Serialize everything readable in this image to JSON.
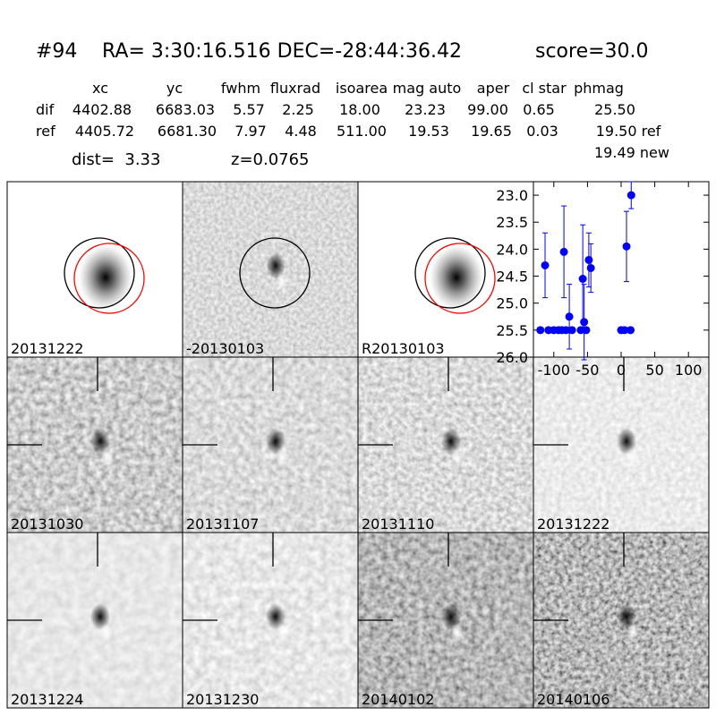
{
  "header": {
    "id": "#94",
    "coords": "RA= 3:30:16.516 DEC=-28:44:36.42",
    "score": "score=30.0"
  },
  "table": {
    "columns": [
      "xc",
      "yc",
      "fwhm",
      "fluxrad",
      "isoarea",
      "mag auto",
      "aper",
      "cl star",
      "phmag"
    ],
    "rows": [
      {
        "label": "dif",
        "values": [
          "4402.88",
          "6683.03",
          "5.57",
          "2.25",
          "18.00",
          "23.23",
          "99.00",
          "0.65",
          "25.50"
        ]
      },
      {
        "label": "ref",
        "values": [
          "4405.72",
          "6681.30",
          "7.97",
          "4.48",
          "511.00",
          "19.53",
          "19.65",
          "0.03",
          "19.50 ref"
        ]
      }
    ],
    "extra": "19.49 new"
  },
  "distance": "dist=  3.33",
  "redshift": "z=0.0765",
  "stamps": [
    {
      "label": "20131222"
    },
    {
      "label": "-20130103"
    },
    {
      "label": "R20130103"
    },
    {
      "label": "20131030"
    },
    {
      "label": "20131107"
    },
    {
      "label": "20131110"
    },
    {
      "label": "20131222",
      "color": "#ff0000"
    },
    {
      "label": "20131224"
    },
    {
      "label": "20131230"
    },
    {
      "label": "20140102"
    },
    {
      "label": "20140106"
    }
  ],
  "chart_data": {
    "type": "scatter",
    "color": "#0000ff",
    "x": [
      -120,
      -113,
      -108,
      -100,
      -93,
      -88,
      -85,
      -82,
      -77,
      -73,
      -60,
      -57,
      -55,
      -52,
      -48,
      -45,
      0,
      5,
      8,
      14,
      15
    ],
    "values": [
      25.5,
      24.3,
      25.5,
      25.5,
      25.5,
      25.5,
      24.05,
      25.5,
      25.25,
      25.5,
      25.5,
      24.55,
      25.35,
      25.5,
      24.2,
      24.35,
      25.5,
      25.5,
      23.95,
      25.5,
      23.0
    ],
    "errors": [
      0.05,
      0.6,
      0.05,
      0.05,
      0.05,
      0.05,
      0.85,
      0.05,
      0.6,
      0.05,
      0.05,
      1.0,
      0.7,
      0.05,
      0.5,
      0.45,
      0.05,
      0.05,
      0.65,
      0.05,
      0.25
    ],
    "xlim": [
      -125,
      125
    ],
    "ylim": [
      26.0,
      22.75
    ],
    "xticks": [
      -100,
      -50,
      0,
      50,
      100
    ],
    "yticks": [
      {
        "value": 23.0,
        "label": "23.0"
      },
      {
        "value": 23.5,
        "label": "23.5"
      },
      {
        "value": 24.0,
        "label": "24.0"
      },
      {
        "value": 24.5,
        "label": "24.5"
      },
      {
        "value": 25.0,
        "label": "25.0"
      },
      {
        "value": 25.5,
        "label": "25.5"
      },
      {
        "value": 26.0,
        "label": "26.0"
      }
    ]
  }
}
